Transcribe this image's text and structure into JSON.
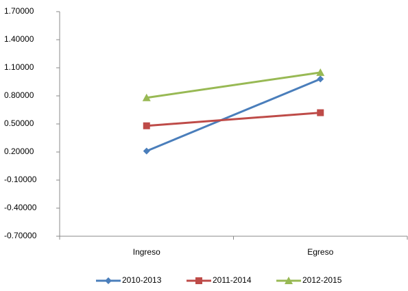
{
  "chart_data": {
    "type": "line",
    "categories": [
      "Ingreso",
      "Egreso"
    ],
    "series": [
      {
        "name": "2010-2013",
        "color": "#4a7ebb",
        "marker": "diamond",
        "values": [
          0.21,
          0.98
        ]
      },
      {
        "name": "2011-2014",
        "color": "#be4b48",
        "marker": "square",
        "values": [
          0.48,
          0.62
        ]
      },
      {
        "name": "2012-2015",
        "color": "#98b954",
        "marker": "triangle",
        "values": [
          0.78,
          1.05
        ]
      }
    ],
    "ylim": [
      -0.7,
      1.7
    ],
    "yticks": [
      {
        "value": -0.7,
        "label": "-0.70000"
      },
      {
        "value": -0.4,
        "label": "-0.40000"
      },
      {
        "value": -0.1,
        "label": "-0.10000"
      },
      {
        "value": 0.2,
        "label": "0.20000"
      },
      {
        "value": 0.5,
        "label": "0.50000"
      },
      {
        "value": 0.8,
        "label": "0.80000"
      },
      {
        "value": 1.1,
        "label": "1.10000"
      },
      {
        "value": 1.4,
        "label": "1.40000"
      },
      {
        "value": 1.7,
        "label": "1.70000"
      }
    ],
    "grid": false,
    "legend": "bottom"
  }
}
